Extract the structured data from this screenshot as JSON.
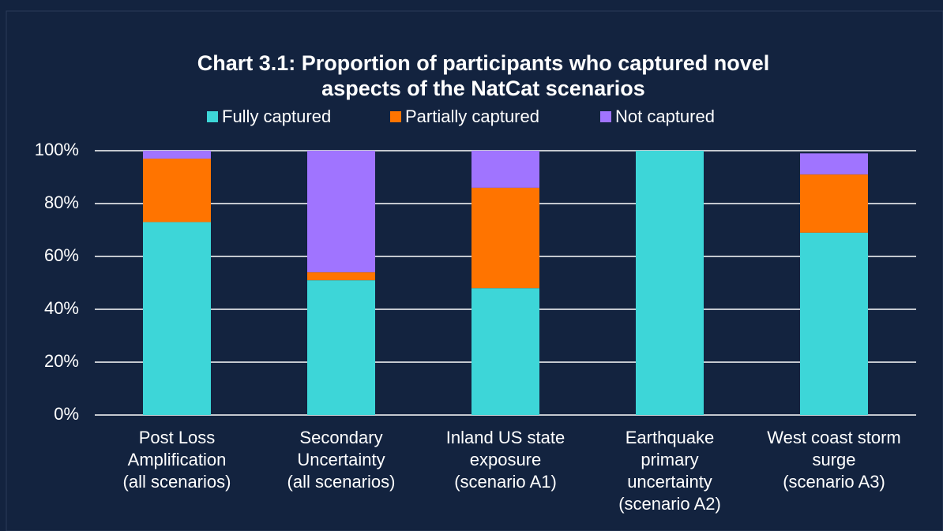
{
  "chart_data": {
    "type": "stacked_bar",
    "title": [
      "Chart 3.1: Proportion of participants who captured novel",
      "aspects of the NatCat scenarios"
    ],
    "categories": [
      [
        "Post Loss",
        "Amplification",
        "(all scenarios)"
      ],
      [
        "Secondary",
        "Uncertainty",
        "(all scenarios)"
      ],
      [
        "Inland US state",
        "exposure",
        "(scenario A1)"
      ],
      [
        "Earthquake",
        "primary",
        "uncertainty",
        "(scenario A2)"
      ],
      [
        "West coast storm",
        "surge",
        "(scenario A3)"
      ]
    ],
    "series": [
      {
        "name": "Fully captured",
        "color": "#3dd6d8",
        "values": [
          73,
          51,
          48,
          100,
          69
        ]
      },
      {
        "name": "Partially captured",
        "color": "#ff7400",
        "values": [
          24,
          3,
          38,
          0,
          22
        ]
      },
      {
        "name": "Not captured",
        "color": "#a074ff",
        "values": [
          3,
          46,
          14,
          0,
          8
        ]
      }
    ],
    "ylim": [
      0,
      100
    ],
    "yticks": [
      {
        "value": 0,
        "label": "0%"
      },
      {
        "value": 20,
        "label": "20%"
      },
      {
        "value": 40,
        "label": "40%"
      },
      {
        "value": 60,
        "label": "60%"
      },
      {
        "value": 80,
        "label": "80%"
      },
      {
        "value": 100,
        "label": "100%"
      }
    ],
    "grid": true,
    "legend": "top"
  }
}
